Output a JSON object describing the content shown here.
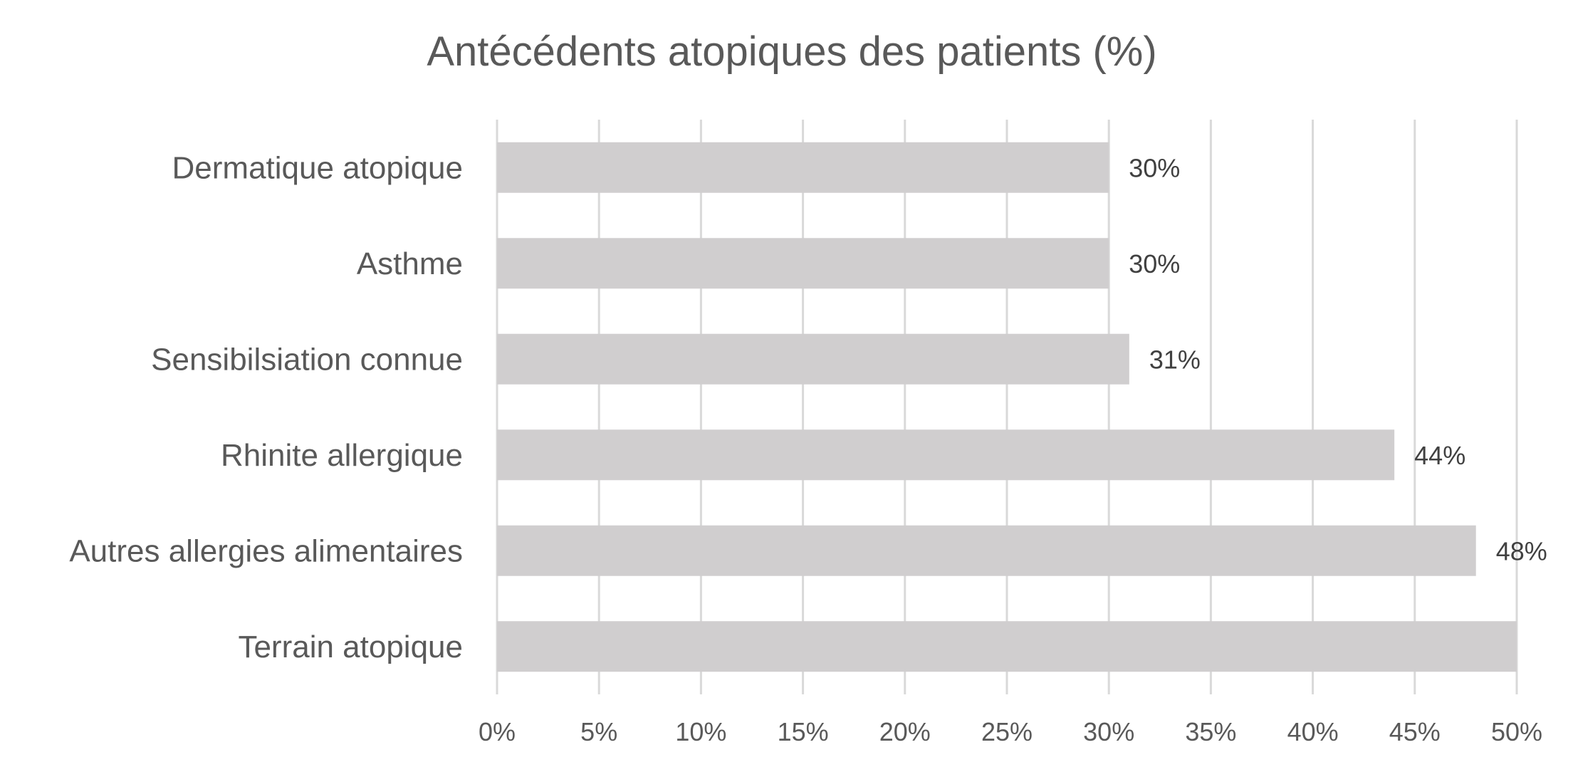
{
  "chart_data": {
    "type": "bar",
    "orientation": "horizontal",
    "title": "Antécédents atopiques des patients (%)",
    "categories": [
      "Dermatique atopique",
      "Asthme",
      "Sensibilsiation connue",
      "Rhinite allergique",
      "Autres allergies alimentaires",
      "Terrain atopique"
    ],
    "values": [
      30,
      30,
      31,
      44,
      48,
      50
    ],
    "data_labels": [
      "30%",
      "30%",
      "31%",
      "44%",
      "48%",
      ""
    ],
    "xlim": [
      0,
      50
    ],
    "x_ticks": [
      0,
      5,
      10,
      15,
      20,
      25,
      30,
      35,
      40,
      45,
      50
    ],
    "x_tick_labels": [
      "0%",
      "5%",
      "10%",
      "15%",
      "20%",
      "25%",
      "30%",
      "35%",
      "40%",
      "45%",
      "50%"
    ],
    "grid": true,
    "legend": "none",
    "colors": {
      "bar": "#d0cecf",
      "grid": "#d9d9d9",
      "text": "#595959",
      "data_label": "#404040"
    }
  }
}
